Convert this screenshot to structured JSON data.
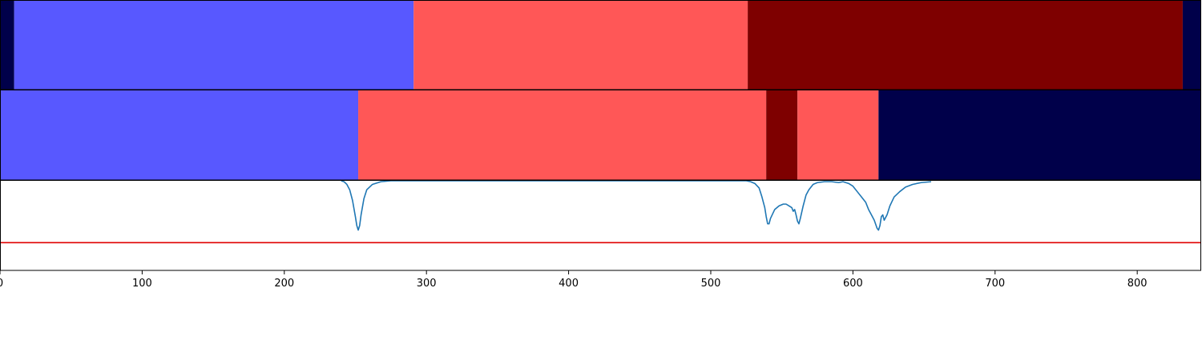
{
  "chart_data": {
    "type": "segmentation-timeline",
    "x_range": [
      0,
      845
    ],
    "x_ticks": [
      "0",
      "100",
      "200",
      "300",
      "400",
      "500",
      "600",
      "700",
      "800"
    ],
    "x_tick_values": [
      0,
      100,
      200,
      300,
      400,
      500,
      600,
      700,
      800
    ],
    "colors": {
      "dark_navy": "#00004a",
      "blue": "#5858ff",
      "light_red": "#ff5757",
      "dark_red": "#7e0000",
      "curve": "#1f77b4",
      "threshold": "#e00000"
    },
    "rows": [
      {
        "name": "row-1",
        "segments": [
          {
            "start": 0,
            "end": 10,
            "color": "dark_navy"
          },
          {
            "start": 10,
            "end": 291,
            "color": "blue"
          },
          {
            "start": 291,
            "end": 526,
            "color": "light_red"
          },
          {
            "start": 526,
            "end": 832,
            "color": "dark_red"
          },
          {
            "start": 832,
            "end": 845,
            "color": "dark_navy"
          }
        ]
      },
      {
        "name": "row-2",
        "segments": [
          {
            "start": 0,
            "end": 252,
            "color": "blue"
          },
          {
            "start": 252,
            "end": 539,
            "color": "light_red"
          },
          {
            "start": 539,
            "end": 561,
            "color": "dark_red"
          },
          {
            "start": 561,
            "end": 618,
            "color": "light_red"
          },
          {
            "start": 618,
            "end": 845,
            "color": "dark_navy"
          }
        ]
      }
    ],
    "curve_panel": {
      "y_range": [
        0,
        1
      ],
      "threshold": 0.31,
      "curve_start": 240,
      "curve_end": 655,
      "curve": [
        [
          240,
          1.0
        ],
        [
          242,
          0.99
        ],
        [
          244,
          0.96
        ],
        [
          246,
          0.9
        ],
        [
          248,
          0.78
        ],
        [
          250,
          0.6
        ],
        [
          251,
          0.5
        ],
        [
          252,
          0.45
        ],
        [
          253,
          0.5
        ],
        [
          254,
          0.62
        ],
        [
          256,
          0.8
        ],
        [
          258,
          0.9
        ],
        [
          262,
          0.96
        ],
        [
          268,
          0.99
        ],
        [
          275,
          1.0
        ],
        [
          300,
          1.0
        ],
        [
          400,
          1.0
        ],
        [
          500,
          1.0
        ],
        [
          525,
          1.0
        ],
        [
          528,
          0.99
        ],
        [
          531,
          0.97
        ],
        [
          534,
          0.92
        ],
        [
          536,
          0.82
        ],
        [
          538,
          0.7
        ],
        [
          539,
          0.6
        ],
        [
          540,
          0.52
        ],
        [
          541,
          0.52
        ],
        [
          542,
          0.58
        ],
        [
          545,
          0.68
        ],
        [
          548,
          0.72
        ],
        [
          551,
          0.74
        ],
        [
          553,
          0.74
        ],
        [
          555,
          0.72
        ],
        [
          557,
          0.7
        ],
        [
          558,
          0.66
        ],
        [
          559,
          0.68
        ],
        [
          560,
          0.62
        ],
        [
          561,
          0.55
        ],
        [
          562,
          0.52
        ],
        [
          563,
          0.58
        ],
        [
          565,
          0.72
        ],
        [
          567,
          0.84
        ],
        [
          569,
          0.9
        ],
        [
          572,
          0.96
        ],
        [
          575,
          0.98
        ],
        [
          580,
          0.99
        ],
        [
          585,
          0.99
        ],
        [
          590,
          0.98
        ],
        [
          593,
          0.99
        ],
        [
          597,
          0.97
        ],
        [
          600,
          0.94
        ],
        [
          603,
          0.88
        ],
        [
          606,
          0.82
        ],
        [
          609,
          0.76
        ],
        [
          611,
          0.68
        ],
        [
          613,
          0.62
        ],
        [
          615,
          0.56
        ],
        [
          617,
          0.47
        ],
        [
          618,
          0.45
        ],
        [
          619,
          0.5
        ],
        [
          620,
          0.6
        ],
        [
          621,
          0.62
        ],
        [
          622,
          0.56
        ],
        [
          624,
          0.62
        ],
        [
          626,
          0.72
        ],
        [
          629,
          0.82
        ],
        [
          633,
          0.88
        ],
        [
          637,
          0.93
        ],
        [
          642,
          0.96
        ],
        [
          648,
          0.98
        ],
        [
          655,
          0.99
        ]
      ]
    }
  }
}
